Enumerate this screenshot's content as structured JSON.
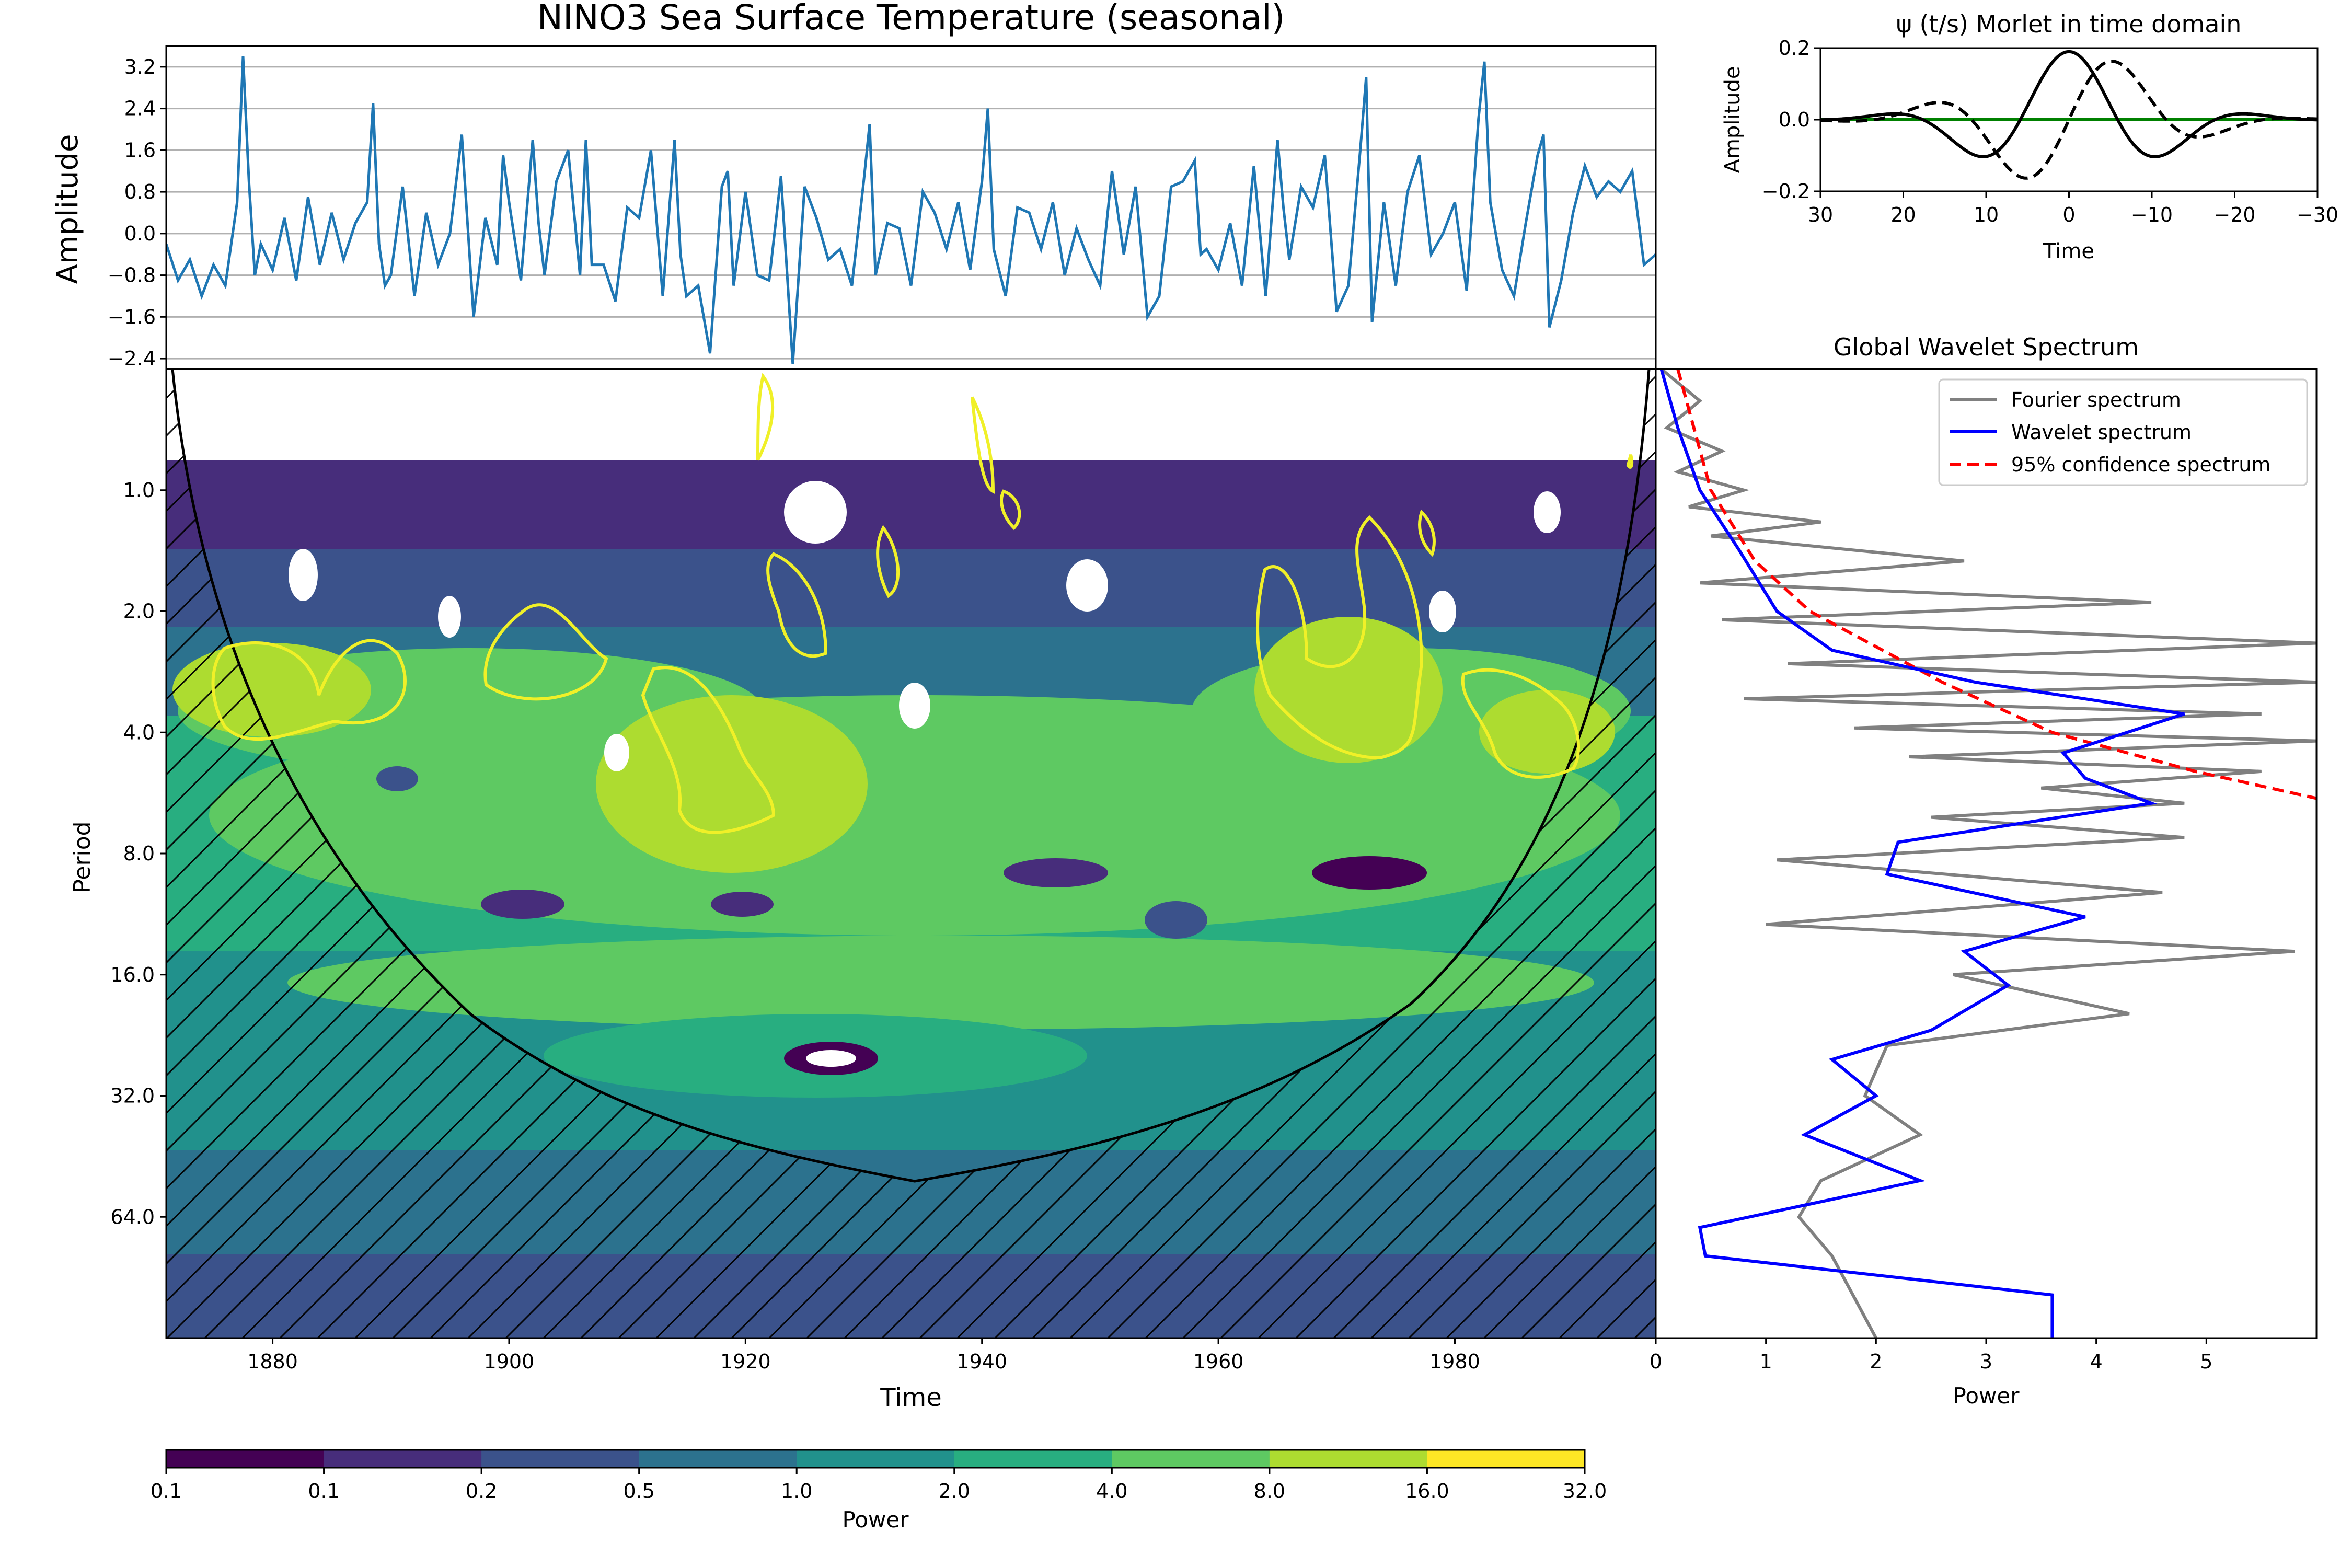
{
  "chart_data": [
    {
      "id": "timeseries",
      "type": "line",
      "title": "NINO3 Sea Surface Temperature (seasonal)",
      "xlabel": "",
      "ylabel": "Amplitude",
      "xlim": [
        1871,
        1997
      ],
      "ylim": [
        -2.6,
        3.6
      ],
      "yticks": [
        "3.2",
        "2.4",
        "1.6",
        "0.8",
        "0.0",
        "−0.8",
        "−1.6",
        "−2.4"
      ],
      "grid": "horizontal",
      "series_color": "#1f77b4",
      "series": [
        {
          "x": [
            1871.0,
            1872.0,
            1873.0,
            1874.0,
            1875.0,
            1876.0,
            1877.0,
            1877.5,
            1878.0,
            1878.5,
            1879.0,
            1880.0,
            1881.0,
            1882.0,
            1883.0,
            1884.0,
            1885.0,
            1886.0,
            1887.0,
            1888.0,
            1888.5,
            1889.0,
            1889.5,
            1890.0,
            1891.0,
            1892.0,
            1893.0,
            1894.0,
            1895.0,
            1896.0,
            1897.0,
            1898.0,
            1899.0,
            1899.5,
            1900.0,
            1901.0,
            1902.0,
            1902.5,
            1903.0,
            1904.0,
            1905.0,
            1906.0,
            1906.5,
            1907.0,
            1908.0,
            1909.0,
            1910.0,
            1911.0,
            1912.0,
            1913.0,
            1914.0,
            1914.5,
            1915.0,
            1916.0,
            1917.0,
            1918.0,
            1918.5,
            1919.0,
            1920.0,
            1921.0,
            1922.0,
            1923.0,
            1924.0,
            1925.0,
            1926.0,
            1927.0,
            1928.0,
            1929.0,
            1930.0,
            1930.5,
            1931.0,
            1932.0,
            1933.0,
            1934.0,
            1935.0,
            1936.0,
            1937.0,
            1938.0,
            1939.0,
            1940.0,
            1940.5,
            1941.0,
            1942.0,
            1943.0,
            1944.0,
            1945.0,
            1946.0,
            1947.0,
            1948.0,
            1949.0,
            1950.0,
            1951.0,
            1952.0,
            1953.0,
            1954.0,
            1955.0,
            1956.0,
            1957.0,
            1958.0,
            1958.5,
            1959.0,
            1960.0,
            1961.0,
            1962.0,
            1963.0,
            1964.0,
            1965.0,
            1965.5,
            1966.0,
            1967.0,
            1968.0,
            1969.0,
            1970.0,
            1971.0,
            1972.0,
            1972.5,
            1973.0,
            1974.0,
            1975.0,
            1976.0,
            1977.0,
            1978.0,
            1979.0,
            1980.0,
            1981.0,
            1982.0,
            1982.5,
            1983.0,
            1984.0,
            1985.0,
            1986.0,
            1987.0,
            1987.5,
            1988.0,
            1989.0,
            1990.0,
            1991.0,
            1992.0,
            1993.0,
            1994.0,
            1995.0,
            1996.0,
            1997.0
          ],
          "y": [
            -0.2,
            -0.9,
            -0.5,
            -1.2,
            -0.6,
            -1.0,
            0.6,
            3.4,
            1.0,
            -0.8,
            -0.2,
            -0.7,
            0.3,
            -0.9,
            0.7,
            -0.6,
            0.4,
            -0.5,
            0.2,
            0.6,
            2.5,
            -0.2,
            -1.0,
            -0.8,
            0.9,
            -1.2,
            0.4,
            -0.6,
            0.0,
            1.9,
            -1.6,
            0.3,
            -0.6,
            1.5,
            0.6,
            -0.9,
            1.8,
            0.2,
            -0.8,
            1.0,
            1.6,
            -0.8,
            1.8,
            -0.6,
            -0.6,
            -1.3,
            0.5,
            0.3,
            1.6,
            -1.2,
            1.8,
            -0.4,
            -1.2,
            -1.0,
            -2.3,
            0.9,
            1.2,
            -1.0,
            0.8,
            -0.8,
            -0.9,
            1.1,
            -2.5,
            0.9,
            0.3,
            -0.5,
            -0.3,
            -1.0,
            1.0,
            2.1,
            -0.8,
            0.2,
            0.1,
            -1.0,
            0.8,
            0.4,
            -0.3,
            0.6,
            -0.7,
            1.0,
            2.4,
            -0.3,
            -1.2,
            0.5,
            0.4,
            -0.3,
            0.6,
            -0.8,
            0.1,
            -0.5,
            -1.0,
            1.2,
            -0.4,
            0.9,
            -1.6,
            -1.2,
            0.9,
            1.0,
            1.4,
            -0.4,
            -0.3,
            -0.7,
            0.2,
            -1.0,
            1.3,
            -1.2,
            1.8,
            0.5,
            -0.5,
            0.9,
            0.5,
            1.5,
            -1.5,
            -1.0,
            1.6,
            3.0,
            -1.7,
            0.6,
            -1.0,
            0.8,
            1.5,
            -0.4,
            0.0,
            0.6,
            -1.1,
            2.2,
            3.3,
            0.6,
            -0.7,
            -1.2,
            0.2,
            1.5,
            1.9,
            -1.8,
            -0.9,
            0.4,
            1.3,
            0.7,
            1.0,
            0.8,
            1.2,
            -0.6,
            -0.4
          ]
        }
      ]
    },
    {
      "id": "wavelet",
      "type": "heatmap",
      "title": "",
      "xlabel": "Time",
      "ylabel": "Period",
      "xlim": [
        1871,
        1997
      ],
      "xticks": [
        "1880",
        "1900",
        "1920",
        "1940",
        "1960",
        "1980"
      ],
      "yticks": [
        "1.0",
        "2.0",
        "4.0",
        "8.0",
        "16.0",
        "32.0",
        "64.0"
      ],
      "period_range": [
        0.5,
        128
      ],
      "scale": "log2 period, inverted",
      "power_levels": [
        0.0625,
        0.125,
        0.25,
        0.5,
        1,
        2,
        4,
        8,
        16,
        32
      ],
      "significance_contour_color": "#f0f028",
      "cone_of_influence": "hatched"
    },
    {
      "id": "morlet",
      "type": "line",
      "title": "ψ (t/s) Morlet in time domain",
      "xlabel": "Time",
      "ylabel": "Amplitude",
      "xticks": [
        "30",
        "20",
        "10",
        "0",
        "−10",
        "−20",
        "−30"
      ],
      "yticks": [
        "0.2",
        "0.0",
        "−0.2"
      ],
      "xlim": [
        30,
        -30
      ],
      "ylim": [
        -0.2,
        0.2
      ]
    },
    {
      "id": "global",
      "type": "line",
      "title": "Global Wavelet Spectrum",
      "xlabel": "Power",
      "ylabel": "",
      "xticks": [
        "0",
        "1",
        "2",
        "3",
        "4",
        "5"
      ],
      "xlim": [
        0,
        6
      ],
      "legend": [
        "Fourier spectrum",
        "Wavelet spectrum",
        "95% confidence spectrum"
      ],
      "legend_position": "top-right",
      "series": [
        {
          "name": "Wavelet spectrum",
          "color": "#0000ff",
          "period": [
            0.5,
            0.7,
            1.0,
            1.4,
            2.0,
            2.5,
            3.0,
            3.6,
            4.5,
            5.2,
            6.0,
            7.5,
            9.0,
            11.5,
            14.0,
            17.0,
            22.0,
            26.0,
            32.0,
            40.0,
            52.0,
            68.0,
            80.0,
            100.0,
            128.0
          ],
          "value": [
            0.05,
            0.2,
            0.4,
            0.75,
            1.1,
            1.6,
            2.9,
            4.8,
            3.7,
            3.9,
            4.5,
            2.2,
            2.1,
            3.9,
            2.8,
            3.2,
            2.5,
            1.6,
            2.0,
            1.35,
            2.4,
            0.4,
            0.45,
            3.6,
            3.6
          ]
        },
        {
          "name": "95% confidence spectrum",
          "color": "#ff0000",
          "period": [
            0.5,
            1.0,
            1.5,
            2.0,
            3.0,
            4.0,
            5.0,
            6.0
          ],
          "value": [
            0.2,
            0.5,
            0.9,
            1.4,
            2.6,
            3.6,
            4.9,
            6.2
          ]
        },
        {
          "name": "Fourier spectrum",
          "color": "#808080",
          "period": [
            0.5,
            0.6,
            0.7,
            0.8,
            0.9,
            1.0,
            1.1,
            1.2,
            1.3,
            1.5,
            1.7,
            1.9,
            2.1,
            2.4,
            2.7,
            3.0,
            3.3,
            3.6,
            3.9,
            4.2,
            4.6,
            5.0,
            5.5,
            6.0,
            6.5,
            7.3,
            8.3,
            10.0,
            12.0,
            14.0,
            16.0,
            20.0,
            24.0,
            32.0,
            40.0,
            52.0,
            64.0,
            80.0,
            128.0
          ],
          "value": [
            0.05,
            0.4,
            0.1,
            0.6,
            0.2,
            0.8,
            0.3,
            1.5,
            0.5,
            2.8,
            0.4,
            4.5,
            0.6,
            6.0,
            1.2,
            6.0,
            0.8,
            5.5,
            1.8,
            6.0,
            2.3,
            5.5,
            3.5,
            4.8,
            2.5,
            4.8,
            1.1,
            4.6,
            1.0,
            5.8,
            2.7,
            4.3,
            2.1,
            1.9,
            2.4,
            1.5,
            1.3,
            1.6,
            2.0
          ]
        }
      ]
    },
    {
      "id": "colorbar",
      "type": "bar",
      "xlabel": "Power",
      "tick_labels": [
        "0.1",
        "0.1",
        "0.2",
        "0.5",
        "1.0",
        "2.0",
        "4.0",
        "8.0",
        "16.0",
        "32.0"
      ],
      "colors": [
        "#440154",
        "#472d7b",
        "#3b528b",
        "#2c728e",
        "#21918c",
        "#28ae80",
        "#5ec962",
        "#addc30",
        "#fde725"
      ]
    }
  ]
}
